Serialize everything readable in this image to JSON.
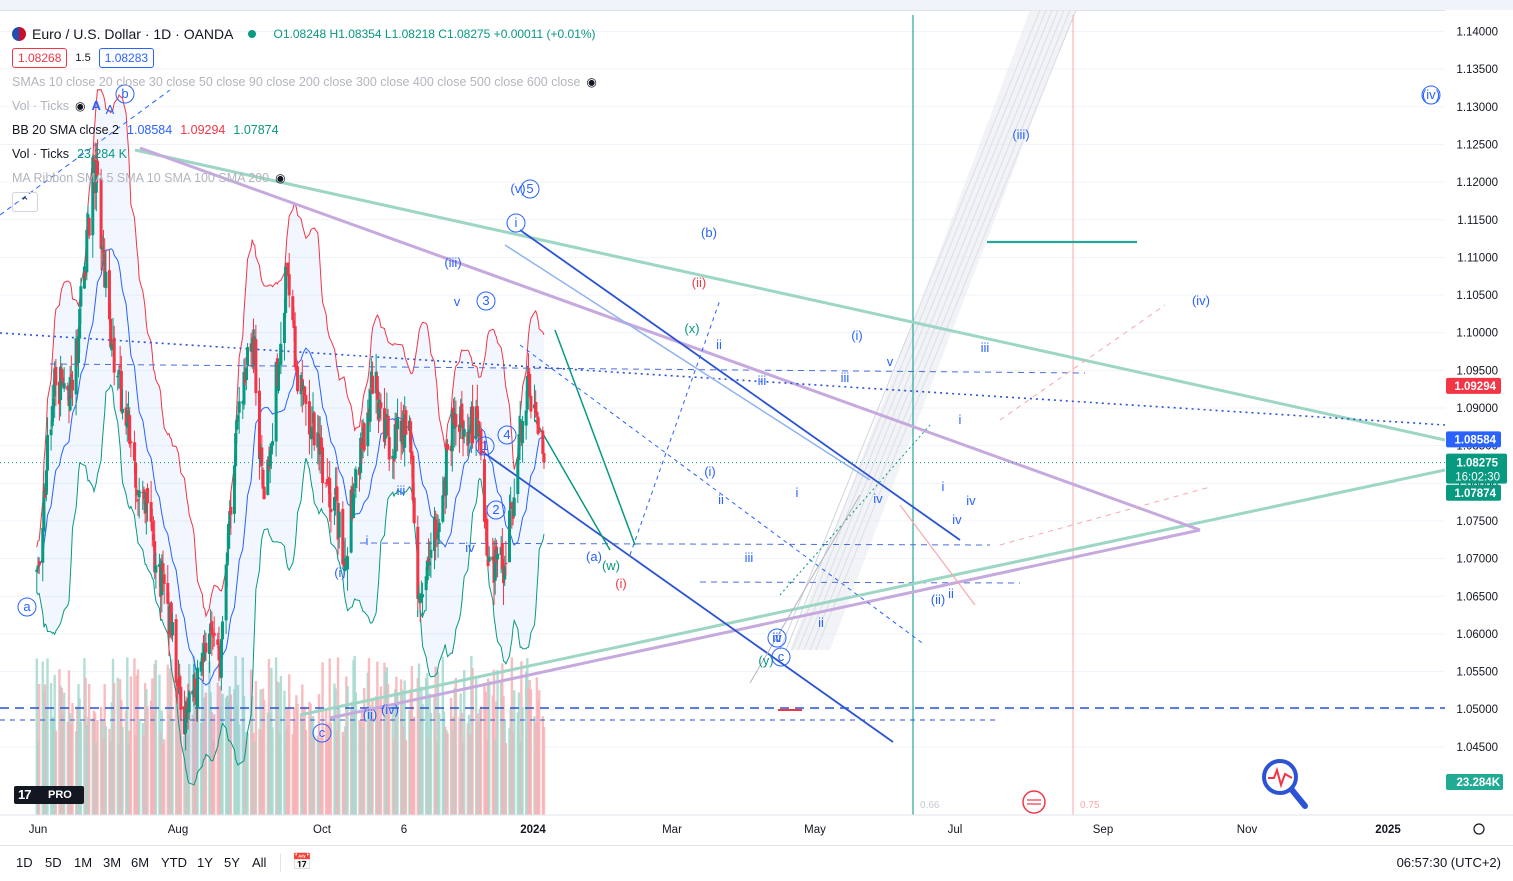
{
  "header": {
    "symbol": "Euro / U.S. Dollar · 1D · OANDA",
    "ohlc": "O1.08248 H1.08354 L1.08218 C1.08275 +0.00011 (+0.01%)",
    "bid": "1.08268",
    "spread": "1.5",
    "ask": "1.08283"
  },
  "indicators": {
    "smas": "SMAs 10 close 20 close 30 close 50 close 90 close 200 close 300 close 400 close 500 close 600 close",
    "vol_ticks_hidden": "Vol · Ticks",
    "bb_name": "BB 20 SMA close 2",
    "bb_mid": "1.08584",
    "bb_upper": "1.09294",
    "bb_lower": "1.07874",
    "vol_name": "Vol · Ticks",
    "vol_value": "23.284 K",
    "ribbon": "MA Ribbon SMA 5 SMA 10 SMA 100 SMA 200"
  },
  "price_labels": {
    "upper": "1.09294",
    "mid": "1.08584",
    "last": "1.08275",
    "countdown": "16:02:30",
    "lower": "1.07874",
    "volume": "23.284K"
  },
  "time_axis": [
    "Jun",
    "Aug",
    "Oct",
    "6",
    "2024",
    "Mar",
    "May",
    "Jul",
    "Sep",
    "Nov",
    "2025"
  ],
  "range_buttons": [
    "1D",
    "5D",
    "1M",
    "3M",
    "6M",
    "YTD",
    "1Y",
    "5Y",
    "All"
  ],
  "clock": "06:57:30 (UTC+2)",
  "logo": {
    "mark": "17",
    "pro": "PRO"
  },
  "fib_labels": [
    "0.66",
    "0.75"
  ],
  "wave_labels": [
    "a",
    "b",
    "A",
    "(v)",
    "5",
    "i",
    "(iii)",
    "v",
    "3",
    "(b)",
    "(ii)",
    "(x)",
    "ii",
    "(i)",
    "v",
    "iii",
    "iii",
    "(iii)",
    "(iv)",
    "(iv)",
    "iv",
    "1",
    "4",
    "2",
    "iii",
    "i",
    "(i)",
    "iv",
    "(i)",
    "ii",
    "iii",
    "i",
    "(a)",
    "(w)",
    "(i)",
    "iii",
    "iv",
    "(y)",
    "c",
    "ii",
    "iv",
    "i",
    "i",
    "iv",
    "iv",
    "(ii)",
    "ii",
    "iii",
    "c",
    "(ii)",
    "(iv)",
    "v",
    "iii",
    "i",
    "v",
    "(iii)"
  ],
  "colors": {
    "up": "#089981",
    "down": "#f23645",
    "bb_band": "#f23645",
    "bb_mid": "#2962ff",
    "trend_teal": "#9dd6c5",
    "trend_purple": "#c6a9dd",
    "channel_blue": "#2b53d4",
    "wave_blue": "#2962ff",
    "wave_red": "#f23645",
    "wave_green": "#089981"
  },
  "chart_data": {
    "type": "candlestick",
    "title": "Euro / U.S. Dollar · 1D · OANDA",
    "ylim": [
      1.0425,
      1.1425
    ],
    "y_ticks": [
      1.14,
      1.135,
      1.13,
      1.125,
      1.12,
      1.115,
      1.11,
      1.105,
      1.1,
      1.095,
      1.09,
      1.085,
      1.08,
      1.075,
      1.07,
      1.065,
      1.06,
      1.055,
      1.05,
      1.045
    ],
    "last_close": 1.08275,
    "bollinger": {
      "upper": 1.09294,
      "basis": 1.08584,
      "lower": 1.07874
    },
    "swing_points": [
      {
        "date": "2023-05-31",
        "close": 1.068
      },
      {
        "date": "2023-06-15",
        "close": 1.094
      },
      {
        "date": "2023-06-30",
        "close": 1.091
      },
      {
        "date": "2023-07-18",
        "close": 1.123
      },
      {
        "date": "2023-08-01",
        "close": 1.099
      },
      {
        "date": "2023-08-25",
        "close": 1.08
      },
      {
        "date": "2023-09-15",
        "close": 1.066
      },
      {
        "date": "2023-10-03",
        "close": 1.048
      },
      {
        "date": "2023-10-13",
        "close": 1.053
      },
      {
        "date": "2023-10-24",
        "close": 1.059
      },
      {
        "date": "2023-11-01",
        "close": 1.057
      },
      {
        "date": "2023-11-14",
        "close": 1.088
      },
      {
        "date": "2023-11-29",
        "close": 1.099
      },
      {
        "date": "2023-12-08",
        "close": 1.076
      },
      {
        "date": "2023-12-28",
        "close": 1.11
      },
      {
        "date": "2024-01-05",
        "close": 1.094
      },
      {
        "date": "2024-01-17",
        "close": 1.088
      },
      {
        "date": "2024-02-01",
        "close": 1.08
      },
      {
        "date": "2024-02-14",
        "close": 1.071
      },
      {
        "date": "2024-03-08",
        "close": 1.094
      },
      {
        "date": "2024-03-19",
        "close": 1.086
      },
      {
        "date": "2024-04-09",
        "close": 1.086
      },
      {
        "date": "2024-04-16",
        "close": 1.062
      },
      {
        "date": "2024-04-26",
        "close": 1.07
      },
      {
        "date": "2024-05-15",
        "close": 1.088
      },
      {
        "date": "2024-06-04",
        "close": 1.088
      },
      {
        "date": "2024-06-14",
        "close": 1.07
      },
      {
        "date": "2024-06-26",
        "close": 1.069
      },
      {
        "date": "2024-07-17",
        "close": 1.094
      },
      {
        "date": "2024-07-26",
        "close": 1.086
      },
      {
        "date": "2024-07-30",
        "close": 1.0827
      }
    ]
  }
}
